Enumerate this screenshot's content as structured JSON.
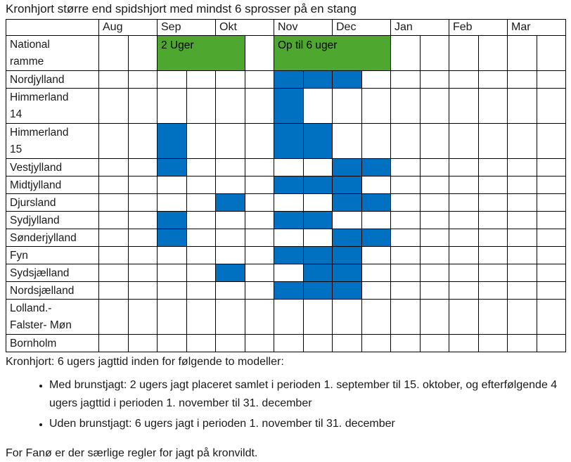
{
  "title": "Kronhjort større end spidshjort med mindst 6 sprosser på en stang",
  "colors": {
    "green": "#4EA72E",
    "blue": "#0070C0",
    "border": "#000000"
  },
  "table": {
    "months": [
      "Aug",
      "Sep",
      "Okt",
      "Nov",
      "Dec",
      "Jan",
      "Feb",
      "Mar"
    ],
    "half_columns_total": 16,
    "rows": [
      {
        "id": "national-ramme",
        "label_lines": [
          "National",
          "ramme"
        ],
        "tall": true,
        "green_spans": [
          {
            "start": 2,
            "len": 3,
            "label": "2 Uger"
          },
          {
            "start": 6,
            "len": 4,
            "label": "Op til 6 uger"
          }
        ],
        "blue_cells": []
      },
      {
        "id": "nordjylland",
        "label_lines": [
          "Nordjylland"
        ],
        "tall": false,
        "green_spans": [],
        "blue_cells": [
          6,
          7,
          8
        ]
      },
      {
        "id": "himmerland-14",
        "label_lines": [
          "Himmerland",
          "14"
        ],
        "tall": true,
        "green_spans": [],
        "blue_cells": [
          6
        ]
      },
      {
        "id": "himmerland-15",
        "label_lines": [
          "Himmerland",
          "15"
        ],
        "tall": true,
        "green_spans": [],
        "blue_cells": [
          2,
          6,
          7
        ]
      },
      {
        "id": "vestjylland",
        "label_lines": [
          "Vestjylland"
        ],
        "tall": false,
        "green_spans": [],
        "blue_cells": [
          2,
          8,
          9
        ]
      },
      {
        "id": "midtjylland",
        "label_lines": [
          "Midtjylland"
        ],
        "tall": false,
        "green_spans": [],
        "blue_cells": [
          6,
          7,
          8
        ]
      },
      {
        "id": "djursland",
        "label_lines": [
          "Djursland"
        ],
        "tall": false,
        "green_spans": [],
        "blue_cells": [
          4,
          8,
          9
        ]
      },
      {
        "id": "sydjylland",
        "label_lines": [
          "Sydjylland"
        ],
        "tall": false,
        "green_spans": [],
        "blue_cells": [
          2,
          6,
          7
        ]
      },
      {
        "id": "sonderjylland",
        "label_lines": [
          "Sønderjylland"
        ],
        "tall": false,
        "green_spans": [],
        "blue_cells": [
          2,
          8,
          9
        ]
      },
      {
        "id": "fyn",
        "label_lines": [
          "Fyn"
        ],
        "tall": false,
        "green_spans": [],
        "blue_cells": [
          6,
          7,
          8
        ]
      },
      {
        "id": "sydsjaelland",
        "label_lines": [
          "Sydsjælland"
        ],
        "tall": false,
        "green_spans": [],
        "blue_cells": [
          4,
          7,
          8
        ]
      },
      {
        "id": "nordsjaelland",
        "label_lines": [
          "Nordsjælland"
        ],
        "tall": false,
        "green_spans": [],
        "blue_cells": [
          6,
          7,
          8
        ]
      },
      {
        "id": "lolland-falster-mon",
        "label_lines": [
          "Lolland.-",
          "Falster- Møn"
        ],
        "tall": true,
        "green_spans": [],
        "blue_cells": []
      },
      {
        "id": "bornholm",
        "label_lines": [
          "Bornholm"
        ],
        "tall": false,
        "green_spans": [],
        "blue_cells": []
      }
    ]
  },
  "notes": {
    "intro": "Kronhjort: 6 ugers jagttid inden for følgende to modeller:",
    "bullets": [
      "Med brunstjagt: 2 ugers jagt placeret samlet i perioden 1. september til 15. oktober, og efterfølgende 4 ugers jagttid i perioden 1. november til 31. december",
      "Uden brunstjagt: 6 ugers jagt i perioden 1. november til 31. december"
    ],
    "footer": "For Fanø er der særlige regler for jagt på kronvildt."
  }
}
